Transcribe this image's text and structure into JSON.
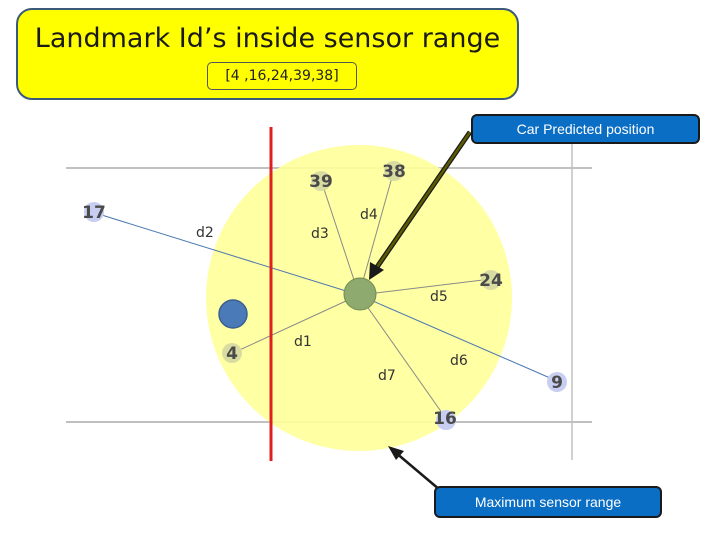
{
  "title": "Landmark Id’s inside sensor range",
  "ids_in_range": "[4 ,16,24,39,38]",
  "callouts": {
    "car_position": "Car Predicted position",
    "sensor_range": "Maximum sensor range"
  },
  "landmarks": [
    {
      "id": "17",
      "inside": false
    },
    {
      "id": "39",
      "inside": true
    },
    {
      "id": "38",
      "inside": true
    },
    {
      "id": "24",
      "inside": true
    },
    {
      "id": "4",
      "inside": true
    },
    {
      "id": "16",
      "inside": true
    },
    {
      "id": "9",
      "inside": false
    }
  ],
  "distances": [
    "d1",
    "d2",
    "d3",
    "d4",
    "d5",
    "d6",
    "d7"
  ],
  "colors": {
    "title_fill": "#ffff00",
    "sensor_range_fill": "#ffff99",
    "car_fill": "#8faa6e",
    "callout_fill": "#0b6ec5",
    "boundary_line": "#e02020",
    "outside_landmark": "#c8cdf2",
    "inside_landmark": "#d9dca0",
    "blue_marker": "#4a7ab8"
  }
}
